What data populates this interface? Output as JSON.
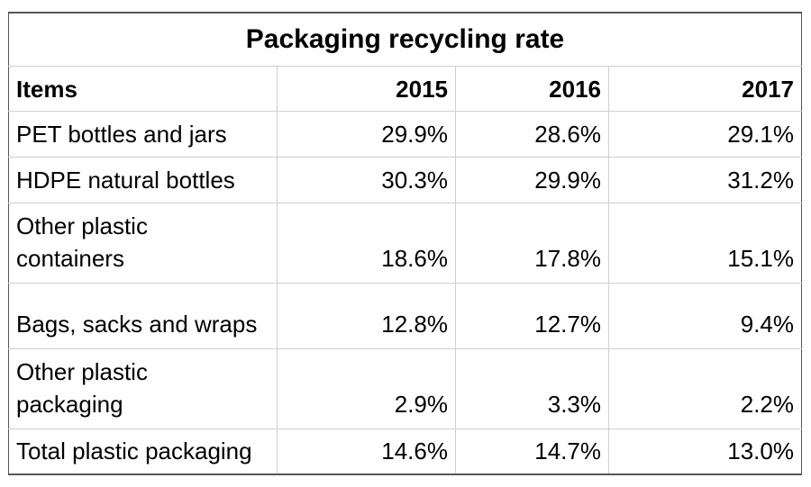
{
  "table": {
    "title": "Packaging recycling rate",
    "columns": [
      "Items",
      "2015",
      "2016",
      "2017"
    ],
    "rows": [
      {
        "item": "PET bottles and jars",
        "values": [
          "29.9%",
          "28.6%",
          "29.1%"
        ]
      },
      {
        "item": "HDPE natural bottles",
        "values": [
          "30.3%",
          "29.9%",
          "31.2%"
        ]
      },
      {
        "item": "Other plastic containers",
        "values": [
          "18.6%",
          "17.8%",
          "15.1%"
        ]
      },
      {
        "item": "Bags, sacks and wraps",
        "values": [
          "12.8%",
          "12.7%",
          "9.4%"
        ]
      },
      {
        "item": "Other plastic packaging",
        "values": [
          "2.9%",
          "3.3%",
          "2.2%"
        ]
      },
      {
        "item": "Total plastic packaging",
        "values": [
          "14.6%",
          "14.7%",
          "13.0%"
        ]
      }
    ]
  }
}
